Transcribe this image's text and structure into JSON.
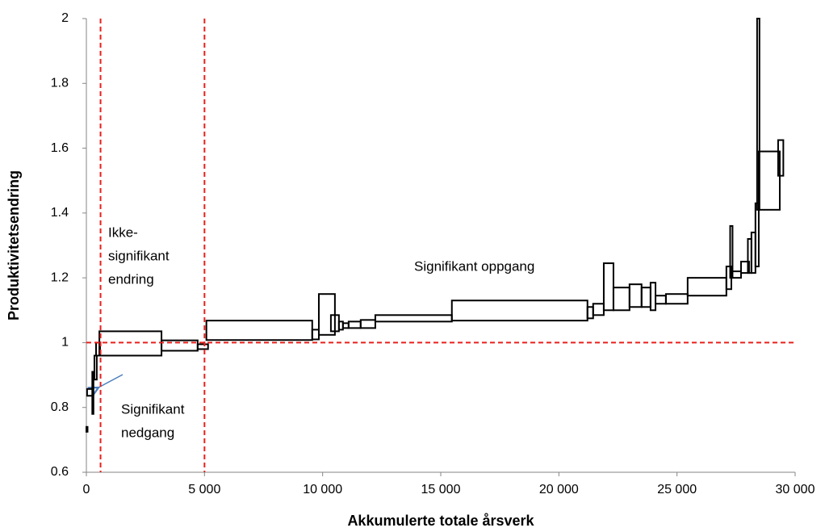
{
  "chart_data": {
    "type": "box-step",
    "x_label": "Akkumulerte totale  årsverk",
    "y_label": "Produktivitetsendring",
    "xlim": [
      0,
      30000
    ],
    "xticks": [
      0,
      {
        "value": 5000,
        "label": "5 000"
      },
      {
        "value": 10000,
        "label": "10 000"
      },
      {
        "value": 15000,
        "label": "15 000"
      },
      {
        "value": 20000,
        "label": "20 000"
      },
      {
        "value": 25000,
        "label": "25 000"
      },
      {
        "value": 30000,
        "label": "30 000"
      }
    ],
    "ylim": [
      0.6,
      2
    ],
    "yticks": [
      0.6,
      0.8,
      1,
      1.2,
      1.4,
      1.6,
      1.8,
      2
    ],
    "color": "#000000",
    "ref_color": "#e8201c",
    "ref_vlines": [
      600,
      5000
    ],
    "ref_hline": 1,
    "annotations": [
      {
        "lines": [
          "Ikke-",
          "signifikant",
          "endring"
        ]
      },
      {
        "lines": [
          "Signifikant",
          "nedgang"
        ]
      },
      {
        "lines": [
          "Signifikant oppgang"
        ]
      }
    ],
    "boxes": [
      {
        "x0": 0,
        "x1": 50,
        "ylow": 0.725,
        "yhigh": 0.74
      },
      {
        "x0": 30,
        "x1": 280,
        "ylow": 0.836,
        "yhigh": 0.857
      },
      {
        "x0": 250,
        "x1": 300,
        "ylow": 0.78,
        "yhigh": 0.91
      },
      {
        "x0": 340,
        "x1": 440,
        "ylow": 0.886,
        "yhigh": 0.96
      },
      {
        "x0": 410,
        "x1": 580,
        "ylow": 0.96,
        "yhigh": 1.0
      },
      {
        "x0": 550,
        "x1": 3180,
        "ylow": 0.96,
        "yhigh": 1.035
      },
      {
        "x0": 3180,
        "x1": 4710,
        "ylow": 0.975,
        "yhigh": 1.007
      },
      {
        "x0": 4710,
        "x1": 5150,
        "ylow": 0.98,
        "yhigh": 0.995
      },
      {
        "x0": 5080,
        "x1": 9560,
        "ylow": 1.008,
        "yhigh": 1.068
      },
      {
        "x0": 9560,
        "x1": 9840,
        "ylow": 1.01,
        "yhigh": 1.04
      },
      {
        "x0": 9840,
        "x1": 10520,
        "ylow": 1.024,
        "yhigh": 1.15
      },
      {
        "x0": 10350,
        "x1": 10690,
        "ylow": 1.035,
        "yhigh": 1.085
      },
      {
        "x0": 10690,
        "x1": 10860,
        "ylow": 1.04,
        "yhigh": 1.065
      },
      {
        "x0": 10860,
        "x1": 11100,
        "ylow": 1.045,
        "yhigh": 1.06
      },
      {
        "x0": 11100,
        "x1": 11610,
        "ylow": 1.045,
        "yhigh": 1.065
      },
      {
        "x0": 11610,
        "x1": 12230,
        "ylow": 1.045,
        "yhigh": 1.07
      },
      {
        "x0": 12230,
        "x1": 15470,
        "ylow": 1.065,
        "yhigh": 1.085
      },
      {
        "x0": 15470,
        "x1": 21210,
        "ylow": 1.068,
        "yhigh": 1.13
      },
      {
        "x0": 21210,
        "x1": 21450,
        "ylow": 1.075,
        "yhigh": 1.11
      },
      {
        "x0": 21450,
        "x1": 21900,
        "ylow": 1.085,
        "yhigh": 1.12
      },
      {
        "x0": 21900,
        "x1": 22310,
        "ylow": 1.1,
        "yhigh": 1.245
      },
      {
        "x0": 22310,
        "x1": 22990,
        "ylow": 1.1,
        "yhigh": 1.17
      },
      {
        "x0": 22990,
        "x1": 23500,
        "ylow": 1.11,
        "yhigh": 1.18
      },
      {
        "x0": 23500,
        "x1": 23880,
        "ylow": 1.11,
        "yhigh": 1.17
      },
      {
        "x0": 23880,
        "x1": 24090,
        "ylow": 1.1,
        "yhigh": 1.185
      },
      {
        "x0": 24090,
        "x1": 24530,
        "ylow": 1.12,
        "yhigh": 1.145
      },
      {
        "x0": 24530,
        "x1": 25450,
        "ylow": 1.12,
        "yhigh": 1.15
      },
      {
        "x0": 25450,
        "x1": 27090,
        "ylow": 1.145,
        "yhigh": 1.2
      },
      {
        "x0": 27090,
        "x1": 27300,
        "ylow": 1.165,
        "yhigh": 1.235
      },
      {
        "x0": 27250,
        "x1": 27350,
        "ylow": 1.2,
        "yhigh": 1.36
      },
      {
        "x0": 27300,
        "x1": 27710,
        "ylow": 1.2,
        "yhigh": 1.22
      },
      {
        "x0": 27710,
        "x1": 28050,
        "ylow": 1.215,
        "yhigh": 1.25
      },
      {
        "x0": 28000,
        "x1": 28150,
        "ylow": 1.215,
        "yhigh": 1.32
      },
      {
        "x0": 28150,
        "x1": 28320,
        "ylow": 1.215,
        "yhigh": 1.34
      },
      {
        "x0": 28320,
        "x1": 28460,
        "ylow": 1.235,
        "yhigh": 1.43
      },
      {
        "x0": 28390,
        "x1": 28490,
        "ylow": 1.41,
        "yhigh": 2.0
      },
      {
        "x0": 28460,
        "x1": 29350,
        "ylow": 1.41,
        "yhigh": 1.59
      },
      {
        "x0": 29280,
        "x1": 29500,
        "ylow": 1.515,
        "yhigh": 1.625
      }
    ]
  }
}
